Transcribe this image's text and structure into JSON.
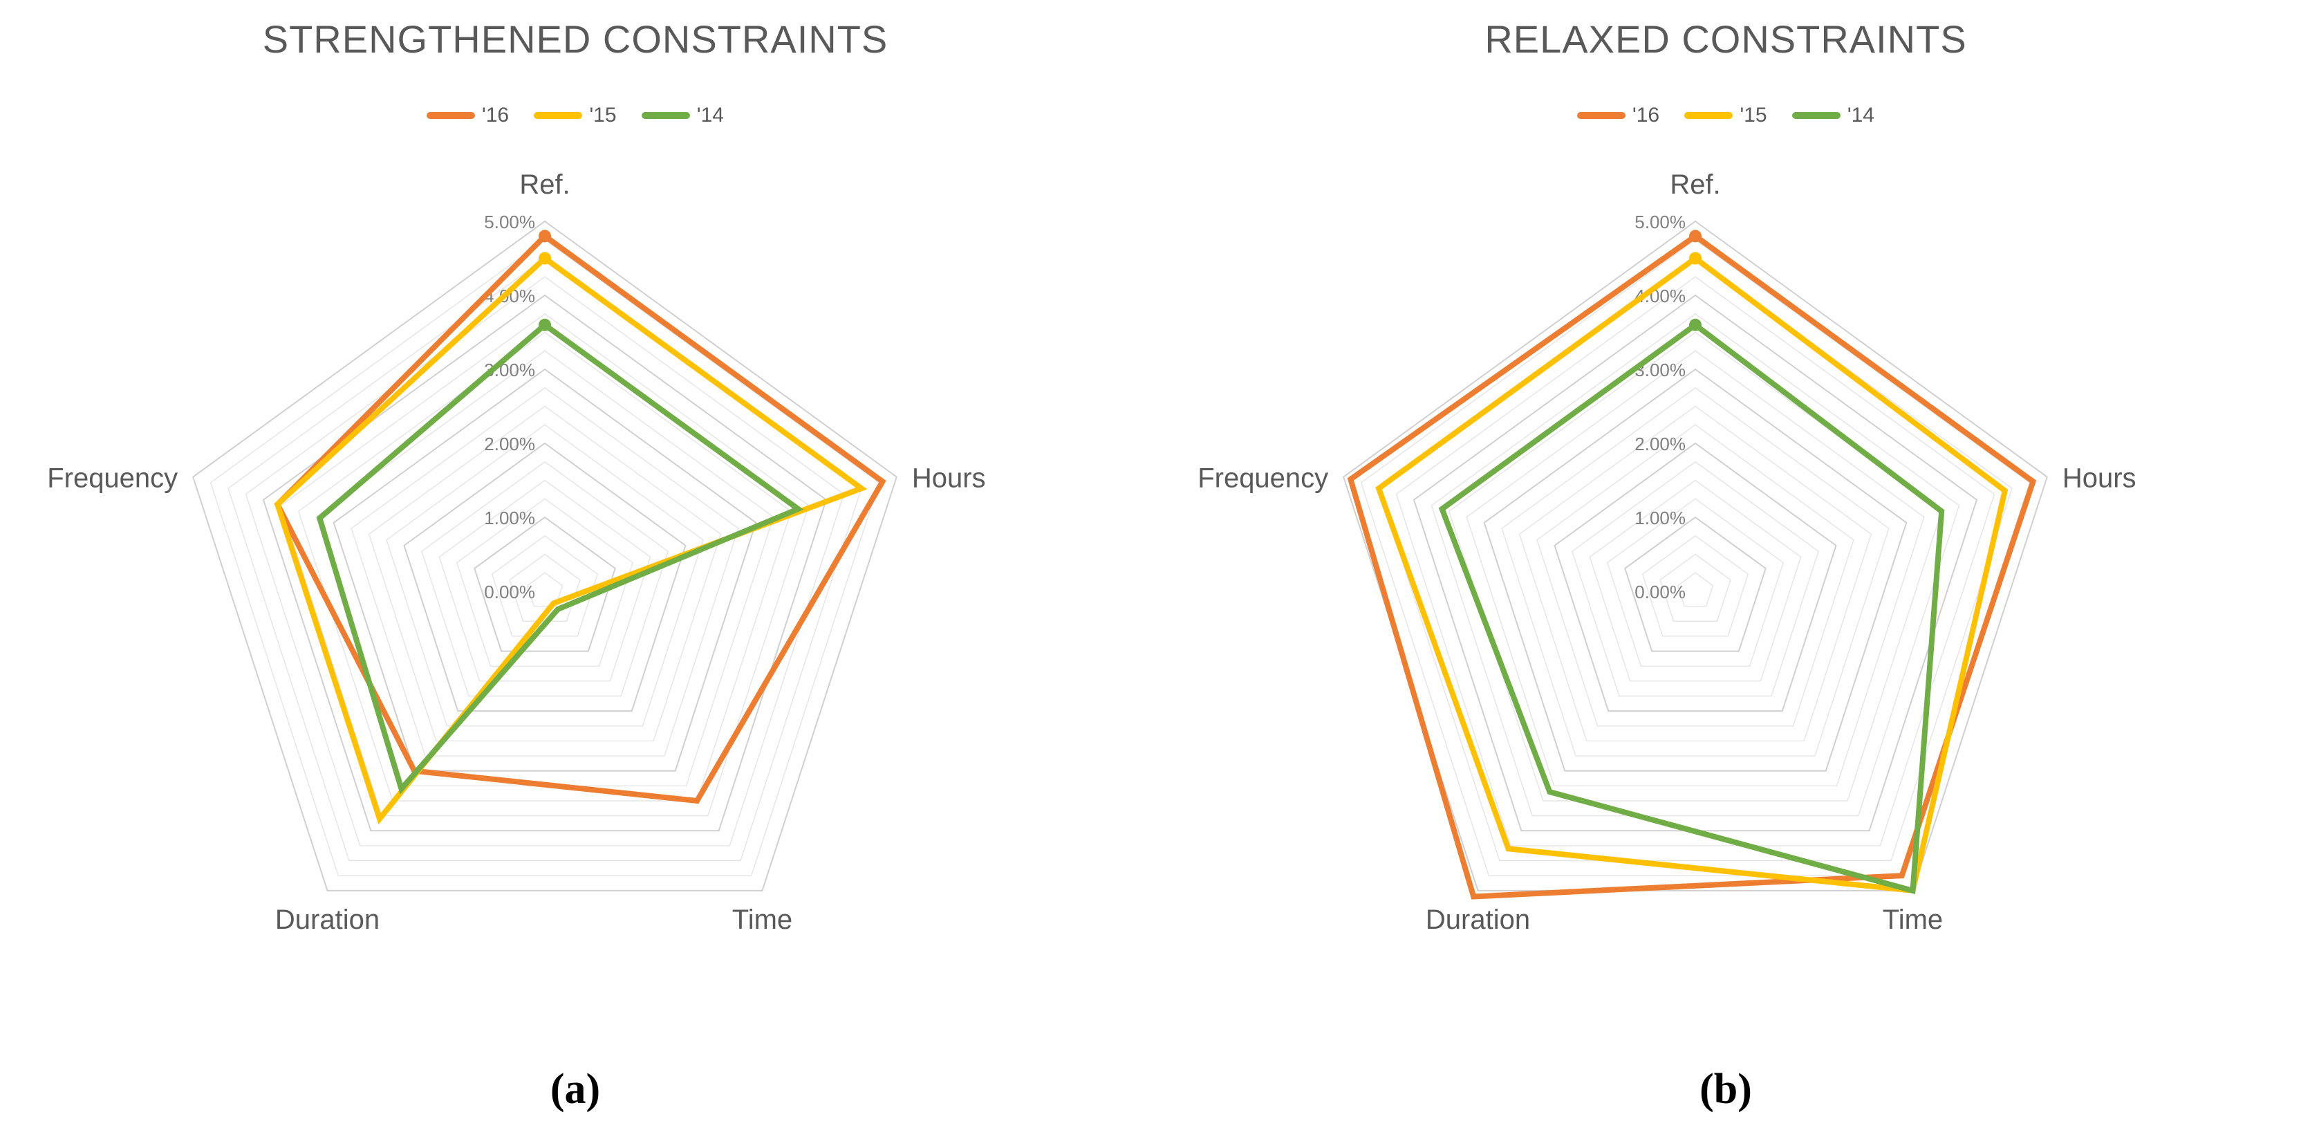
{
  "chart_data": [
    {
      "type": "radar",
      "title": "STRENGTHENED CONSTRAINTS",
      "panel_label": "(a)",
      "axes": [
        "Ref.",
        "Hours",
        "Time",
        "Duration",
        "Frequency"
      ],
      "tick_labels": [
        "0.00%",
        "1.00%",
        "2.00%",
        "3.00%",
        "4.00%",
        "5.00%"
      ],
      "range": [
        0,
        5
      ],
      "grid": true,
      "legend_position": "top",
      "series": [
        {
          "name": "'16",
          "color": "#ED7D31",
          "values": [
            4.8,
            4.8,
            3.5,
            3.0,
            3.8
          ]
        },
        {
          "name": "'15",
          "color": "#FFC000",
          "values": [
            4.5,
            4.5,
            0.2,
            3.8,
            3.8
          ]
        },
        {
          "name": "'14",
          "color": "#70AD47",
          "values": [
            3.6,
            3.6,
            0.3,
            3.3,
            3.2
          ]
        }
      ]
    },
    {
      "type": "radar",
      "title": "RELAXED CONSTRAINTS",
      "panel_label": "(b)",
      "axes": [
        "Ref.",
        "Hours",
        "Time",
        "Duration",
        "Frequency"
      ],
      "tick_labels": [
        "0.00%",
        "1.00%",
        "2.00%",
        "3.00%",
        "4.00%",
        "5.00%"
      ],
      "range": [
        0,
        5
      ],
      "grid": true,
      "legend_position": "top",
      "series": [
        {
          "name": "'16",
          "color": "#ED7D31",
          "values": [
            4.8,
            4.8,
            4.75,
            5.1,
            4.9
          ]
        },
        {
          "name": "'15",
          "color": "#FFC000",
          "values": [
            4.5,
            4.4,
            5.0,
            4.3,
            4.5
          ]
        },
        {
          "name": "'14",
          "color": "#70AD47",
          "values": [
            3.6,
            3.5,
            5.0,
            3.35,
            3.6
          ]
        }
      ]
    }
  ]
}
